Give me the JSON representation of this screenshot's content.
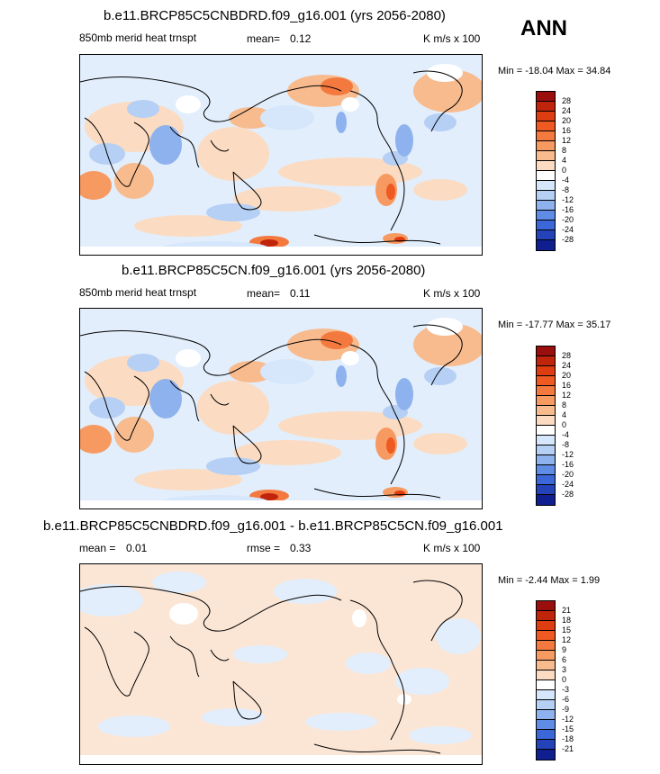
{
  "season": "ANN",
  "panels": [
    {
      "title": "b.e11.BRCP85C5CNBDRD.f09_g16.001 (yrs 2056-2080)",
      "left_label": "850mb merid heat trnspt",
      "mean_label": "mean=",
      "mean_value": "0.12",
      "units": "K m/s x 100",
      "minmax": "Min = -18.04 Max =  34.84",
      "colorbar": {
        "labels": [
          "28",
          "24",
          "20",
          "16",
          "12",
          "8",
          "4",
          "0",
          "-4",
          "-8",
          "-12",
          "-16",
          "-20",
          "-24",
          "-28"
        ],
        "colors": [
          "#9a0e0e",
          "#c0250c",
          "#dd3d10",
          "#ee5a22",
          "#f4793e",
          "#f79a62",
          "#f8bb8e",
          "#fbdcc2",
          "#ffffff",
          "#d6e6fb",
          "#b5cff5",
          "#8eb2ee",
          "#5f8ce5",
          "#3c67d8",
          "#2443b9",
          "#0f1f90"
        ]
      }
    },
    {
      "title": "b.e11.BRCP85C5CN.f09_g16.001 (yrs 2056-2080)",
      "left_label": "850mb merid heat trnspt",
      "mean_label": "mean=",
      "mean_value": "0.11",
      "units": "K m/s x 100",
      "minmax": "Min = -17.77 Max =  35.17",
      "colorbar": {
        "labels": [
          "28",
          "24",
          "20",
          "16",
          "12",
          "8",
          "4",
          "0",
          "-4",
          "-8",
          "-12",
          "-16",
          "-20",
          "-24",
          "-28"
        ],
        "colors": [
          "#9a0e0e",
          "#c0250c",
          "#dd3d10",
          "#ee5a22",
          "#f4793e",
          "#f79a62",
          "#f8bb8e",
          "#fbdcc2",
          "#ffffff",
          "#d6e6fb",
          "#b5cff5",
          "#8eb2ee",
          "#5f8ce5",
          "#3c67d8",
          "#2443b9",
          "#0f1f90"
        ]
      }
    },
    {
      "title": "b.e11.BRCP85C5CNBDRD.f09_g16.001 - b.e11.BRCP85C5CN.f09_g16.001",
      "left_label": "mean =",
      "left_value": "0.01",
      "rmse_label": "rmse =",
      "rmse_value": "0.33",
      "units": "K m/s x 100",
      "minmax": "Min = -2.44 Max =  1.99",
      "colorbar": {
        "labels": [
          "21",
          "18",
          "15",
          "12",
          "9",
          "6",
          "3",
          "0",
          "-3",
          "-6",
          "-9",
          "-12",
          "-15",
          "-18",
          "-21"
        ],
        "colors": [
          "#9a0e0e",
          "#c0250c",
          "#dd3d10",
          "#ee5a22",
          "#f4793e",
          "#f79a62",
          "#f8bb8e",
          "#fbdcc2",
          "#ffffff",
          "#d6e6fb",
          "#b5cff5",
          "#8eb2ee",
          "#5f8ce5",
          "#3c67d8",
          "#2443b9",
          "#0f1f90"
        ]
      }
    }
  ]
}
